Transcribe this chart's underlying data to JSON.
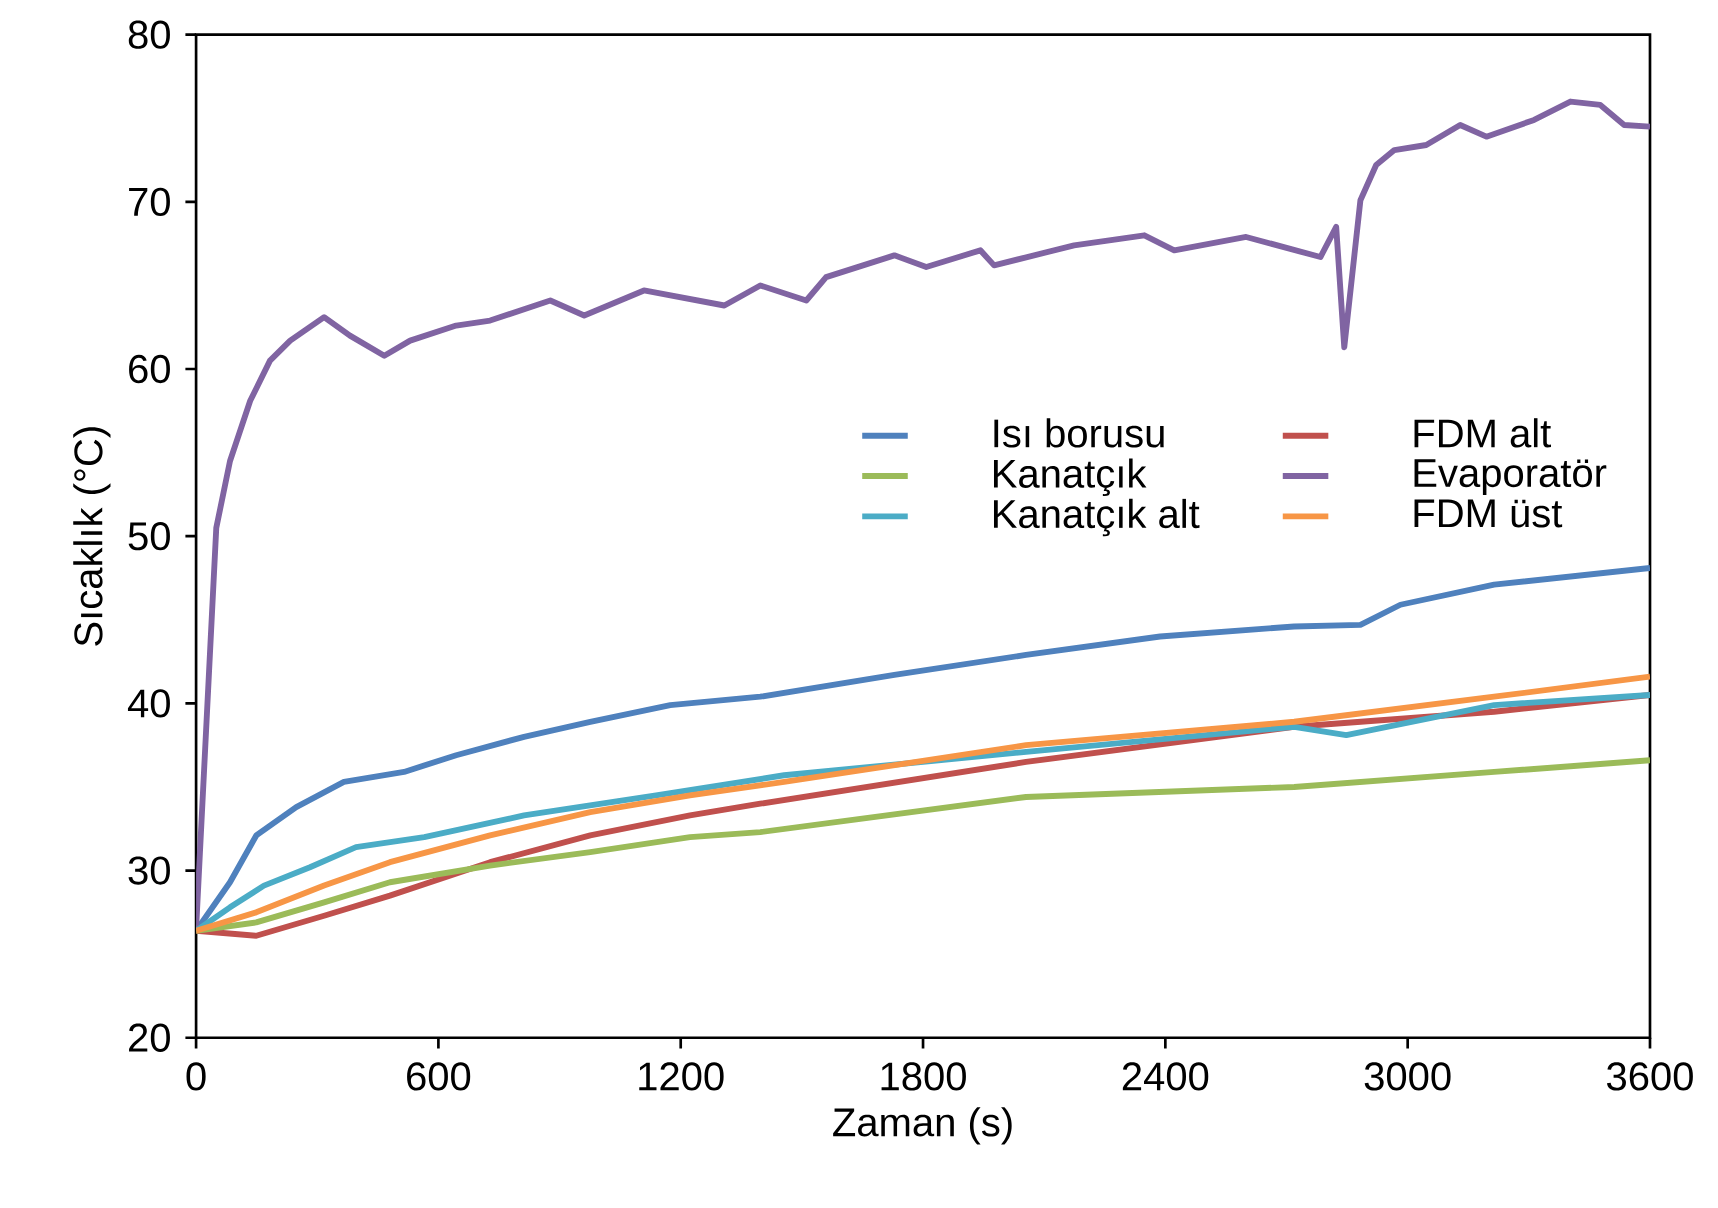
{
  "chart_data": {
    "type": "line",
    "xlabel": "Zaman (s)",
    "ylabel": "Sıcaklık (°C)",
    "xlim": [
      0,
      3600
    ],
    "ylim": [
      20,
      80
    ],
    "xticks": [
      0,
      600,
      1200,
      1800,
      2400,
      3000,
      3600
    ],
    "yticks": [
      20,
      30,
      40,
      50,
      60,
      70,
      80
    ],
    "grid": false,
    "legend": "right",
    "marker": "none",
    "line_style": "solid",
    "series": [
      {
        "name": "Isı borusu",
        "color": "#4f81bd",
        "x": [
          0,
          84,
          149,
          248,
          366,
          515,
          644,
          812,
          976,
          1174,
          1397,
          1729,
          2055,
          2387,
          2719,
          2883,
          2982,
          3214,
          3600
        ],
        "values": [
          26.4,
          29.3,
          32.1,
          33.8,
          35.3,
          35.9,
          36.9,
          38.0,
          38.9,
          39.9,
          40.4,
          41.7,
          42.9,
          44.0,
          44.6,
          44.7,
          45.9,
          47.1,
          48.1
        ]
      },
      {
        "name": "FDM alt",
        "color": "#c0504d",
        "x": [
          0,
          149,
          317,
          480,
          728,
          976,
          1223,
          1397,
          2055,
          2719,
          3214,
          3600
        ],
        "values": [
          26.4,
          26.1,
          27.3,
          28.5,
          30.5,
          32.1,
          33.3,
          34.0,
          36.5,
          38.6,
          39.5,
          40.5
        ]
      },
      {
        "name": "Kanatçık",
        "color": "#9bbb59",
        "x": [
          0,
          149,
          317,
          480,
          728,
          976,
          1223,
          1397,
          2055,
          2719,
          3214,
          3600
        ],
        "values": [
          26.4,
          26.9,
          28.1,
          29.3,
          30.3,
          31.1,
          32.0,
          32.3,
          34.4,
          35.0,
          35.9,
          36.6
        ]
      },
      {
        "name": "Evaporatör",
        "color": "#8064a2",
        "x": [
          0,
          50,
          84,
          134,
          183,
          233,
          317,
          381,
          466,
          530,
          644,
          728,
          877,
          961,
          1109,
          1308,
          1397,
          1511,
          1560,
          1729,
          1808,
          1942,
          1976,
          2174,
          2348,
          2422,
          2600,
          2784,
          2823,
          2843,
          2883,
          2922,
          2967,
          3046,
          3130,
          3195,
          3313,
          3403,
          3477,
          3536,
          3600
        ],
        "values": [
          26.5,
          50.5,
          54.5,
          58.1,
          60.5,
          61.7,
          63.1,
          62.0,
          60.8,
          61.7,
          62.6,
          62.9,
          64.1,
          63.2,
          64.7,
          63.8,
          65.0,
          64.1,
          65.5,
          66.8,
          66.1,
          67.1,
          66.2,
          67.4,
          68.0,
          67.1,
          67.9,
          66.7,
          68.5,
          61.3,
          70.1,
          72.2,
          73.1,
          73.4,
          74.6,
          73.9,
          74.9,
          76.0,
          75.8,
          74.6,
          74.5
        ]
      },
      {
        "name": "Kanatçık alt",
        "color": "#4bacc6",
        "x": [
          0,
          84,
          168,
          282,
          396,
          565,
          812,
          1139,
          1456,
          2055,
          2719,
          2848,
          3214,
          3600
        ],
        "values": [
          26.4,
          27.8,
          29.1,
          30.2,
          31.4,
          32.0,
          33.3,
          34.5,
          35.7,
          37.1,
          38.6,
          38.1,
          39.9,
          40.5
        ]
      },
      {
        "name": "FDM üst",
        "color": "#f79646",
        "x": [
          0,
          149,
          317,
          480,
          728,
          976,
          1223,
          1456,
          2055,
          2719,
          3214,
          3600
        ],
        "values": [
          26.4,
          27.5,
          29.1,
          30.5,
          32.1,
          33.5,
          34.5,
          35.3,
          37.5,
          38.9,
          40.4,
          41.6
        ]
      }
    ]
  }
}
